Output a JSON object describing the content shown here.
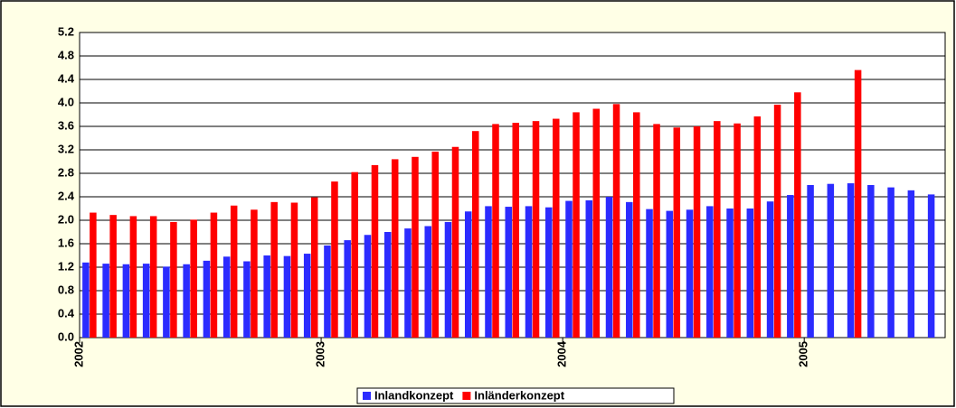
{
  "chart_data": {
    "type": "bar",
    "categories": [
      "2002",
      null,
      null,
      null,
      null,
      null,
      null,
      null,
      null,
      null,
      null,
      null,
      "2003",
      null,
      null,
      null,
      null,
      null,
      null,
      null,
      null,
      null,
      null,
      null,
      "2004",
      null,
      null,
      null,
      null,
      null,
      null,
      null,
      null,
      null,
      null,
      null,
      "2005",
      null,
      null,
      null,
      null,
      null,
      null
    ],
    "series": [
      {
        "name": "Inlandkonzept",
        "color": "#2b2bff",
        "values": [
          1.28,
          1.26,
          1.25,
          1.26,
          1.21,
          1.25,
          1.31,
          1.38,
          1.3,
          1.4,
          1.39,
          1.43,
          1.57,
          1.66,
          1.75,
          1.8,
          1.86,
          1.9,
          1.97,
          2.15,
          2.24,
          2.23,
          2.24,
          2.22,
          2.33,
          2.34,
          2.4,
          2.31,
          2.19,
          2.16,
          2.18,
          2.24,
          2.2,
          2.2,
          2.32,
          2.43,
          2.6,
          2.62,
          2.63,
          2.6,
          2.56,
          2.51,
          2.44
        ]
      },
      {
        "name": "Inländerkonzept",
        "color": "#ff0000",
        "values": [
          2.13,
          2.09,
          2.07,
          2.07,
          1.97,
          2.01,
          2.13,
          2.25,
          2.18,
          2.31,
          2.3,
          2.39,
          2.66,
          2.82,
          2.94,
          3.04,
          3.08,
          3.17,
          3.25,
          3.52,
          3.64,
          3.66,
          3.69,
          3.73,
          3.84,
          3.9,
          3.98,
          3.84,
          3.64,
          3.58,
          3.6,
          3.69,
          3.65,
          3.77,
          3.97,
          4.18,
          null,
          null,
          4.56,
          null,
          null,
          null,
          null
        ]
      }
    ],
    "ylim": [
      0,
      5.2
    ],
    "yticks": [
      {
        "value": 0,
        "label": "0.0"
      },
      {
        "value": 0.4,
        "label": "0.4"
      },
      {
        "value": 0.8,
        "label": "0.8"
      },
      {
        "value": 1.2,
        "label": "1.2"
      },
      {
        "value": 1.6,
        "label": "1.6"
      },
      {
        "value": 2.0,
        "label": "2.0"
      },
      {
        "value": 2.4,
        "label": "2.4"
      },
      {
        "value": 2.8,
        "label": "2.8"
      },
      {
        "value": 3.2,
        "label": "3.2"
      },
      {
        "value": 3.6,
        "label": "3.6"
      },
      {
        "value": 4.0,
        "label": "4.0"
      },
      {
        "value": 4.4,
        "label": "4.4"
      },
      {
        "value": 4.8,
        "label": "4.8"
      },
      {
        "value": 5.2,
        "label": "5.2"
      }
    ],
    "grid": true,
    "legend": "bottom"
  }
}
